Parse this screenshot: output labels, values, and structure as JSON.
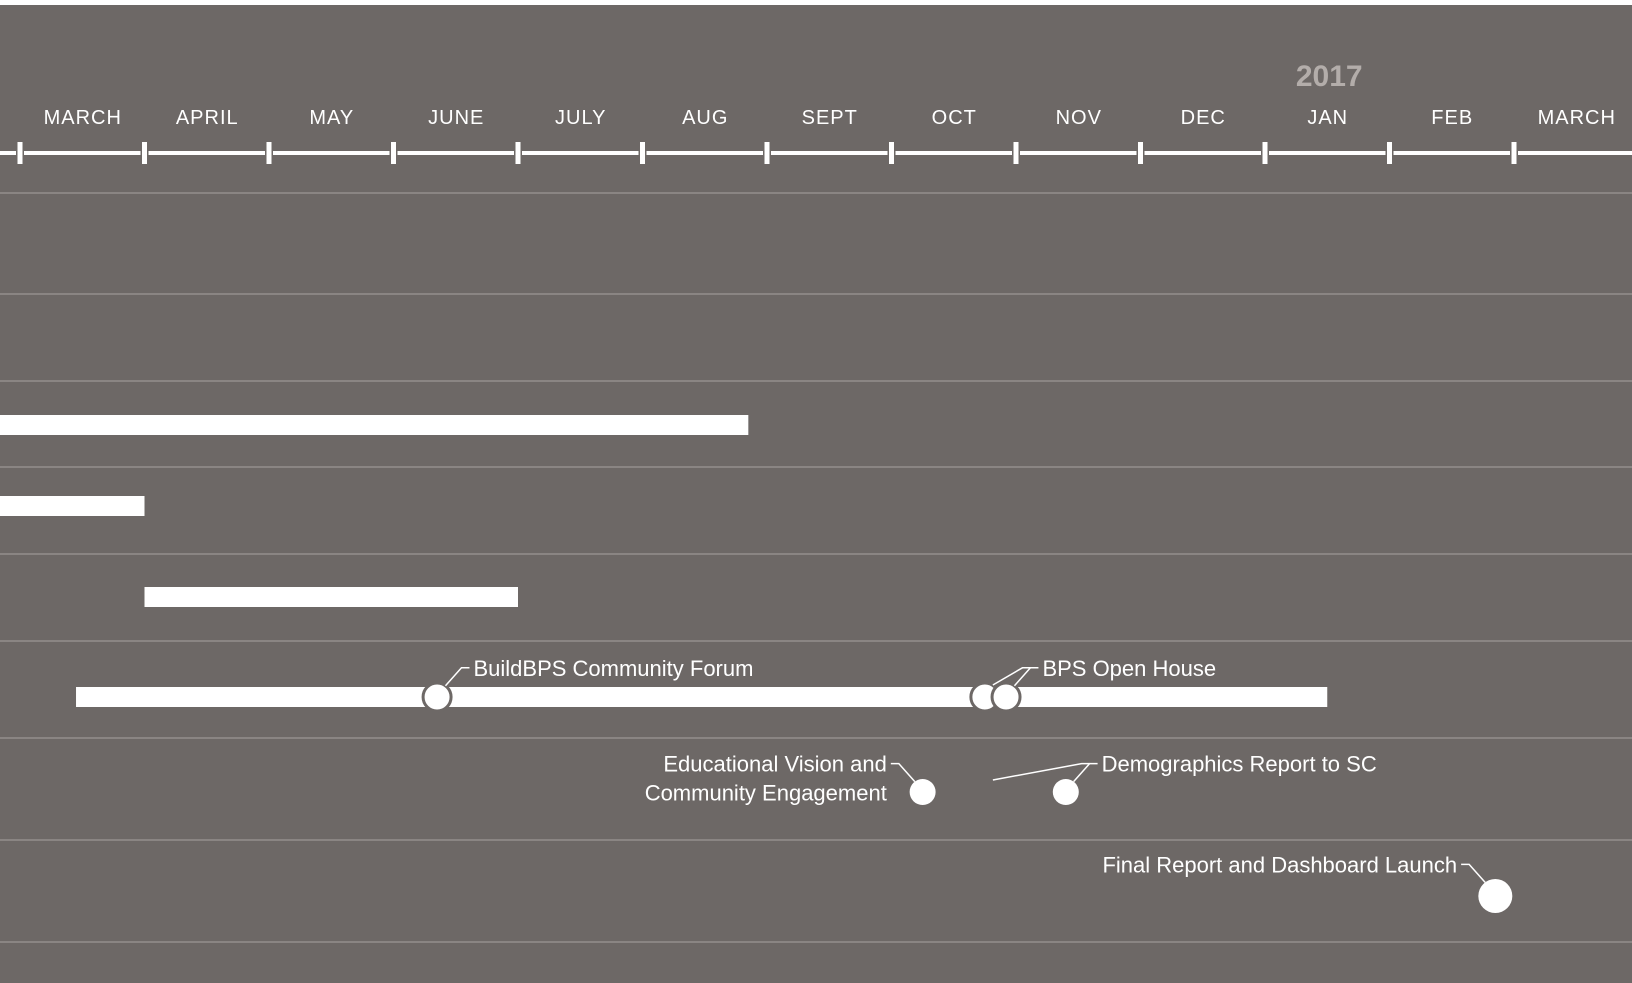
{
  "timeline": {
    "year_marker": "2017",
    "months": [
      "MARCH",
      "APRIL",
      "MAY",
      "JUNE",
      "JULY",
      "AUG",
      "SEPT",
      "OCT",
      "NOV",
      "DEC",
      "JAN",
      "FEB",
      "MARCH"
    ],
    "colors": {
      "background": "#6d6866",
      "foreground": "#ffffff",
      "row_divider": "#8a8583",
      "year_marker": "#b3adaa"
    },
    "rows": [
      {
        "bars": [],
        "milestones": []
      },
      {
        "bars": [],
        "milestones": []
      },
      {
        "bars": [
          {
            "start": -0.2,
            "end": 5.85
          }
        ],
        "milestones": []
      },
      {
        "bars": [
          {
            "start": -0.2,
            "end": 1.0
          }
        ],
        "milestones": []
      },
      {
        "bars": [
          {
            "start": 1.0,
            "end": 4.0
          }
        ],
        "milestones": []
      },
      {
        "bars": [
          {
            "start": 0.45,
            "end": 10.5
          }
        ],
        "milestones": [
          {
            "label": "BuildBPS Community Forum",
            "at": 3.35,
            "style": "ring",
            "label_side": "right"
          },
          {
            "label": "",
            "at": 7.75,
            "style": "ring",
            "label_side": "none"
          },
          {
            "label": "BPS Open House",
            "at": 7.92,
            "style": "ring",
            "label_side": "right"
          }
        ]
      },
      {
        "bars": [],
        "milestones": [
          {
            "label": [
              "Educational Vision and",
              "Community Engagement"
            ],
            "at": 7.25,
            "style": "dot",
            "label_side": "left"
          },
          {
            "label": "Demographics Report to SC",
            "at": 8.4,
            "style": "dot",
            "label_side": "right"
          }
        ]
      },
      {
        "bars": [],
        "milestones": [
          {
            "label": "Final Report and Dashboard Launch",
            "at": 11.85,
            "style": "dot-large",
            "label_side": "left"
          }
        ]
      }
    ]
  }
}
